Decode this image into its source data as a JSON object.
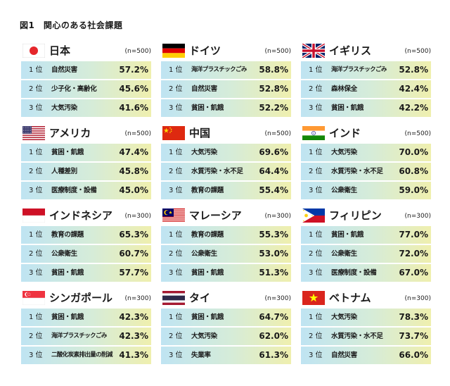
{
  "figure_title": "図1　関心のある社会課題",
  "chart_data": {
    "type": "table",
    "title": "図1　関心のある社会課題",
    "rank_labels": [
      "1 位",
      "2 位",
      "3 位"
    ],
    "countries": [
      {
        "name": "日本",
        "flag": "japan-flag-icon",
        "n": "(n=500)",
        "issues": [
          {
            "label": "自然災害",
            "value": "57.2%"
          },
          {
            "label": "少子化・高齢化",
            "value": "45.6%"
          },
          {
            "label": "大気汚染",
            "value": "41.6%"
          }
        ]
      },
      {
        "name": "ドイツ",
        "flag": "germany-flag-icon",
        "n": "(n=500)",
        "issues": [
          {
            "label": "海洋プラスチックごみ",
            "value": "58.8%"
          },
          {
            "label": "自然災害",
            "value": "52.8%"
          },
          {
            "label": "貧困・飢餓",
            "value": "52.2%"
          }
        ]
      },
      {
        "name": "イギリス",
        "flag": "uk-flag-icon",
        "n": "(n=500)",
        "issues": [
          {
            "label": "海洋プラスチックごみ",
            "value": "52.8%"
          },
          {
            "label": "森林保全",
            "value": "42.4%"
          },
          {
            "label": "貧困・飢餓",
            "value": "42.2%"
          }
        ]
      },
      {
        "name": "アメリカ",
        "flag": "usa-flag-icon",
        "n": "(n=500)",
        "issues": [
          {
            "label": "貧困・飢餓",
            "value": "47.4%"
          },
          {
            "label": "人種差別",
            "value": "45.8%"
          },
          {
            "label": "医療制度・設備",
            "value": "45.0%"
          }
        ]
      },
      {
        "name": "中国",
        "flag": "china-flag-icon",
        "n": "(n=500)",
        "issues": [
          {
            "label": "大気汚染",
            "value": "69.6%"
          },
          {
            "label": "水質汚染・水不足",
            "value": "64.4%"
          },
          {
            "label": "教育の課題",
            "value": "55.4%"
          }
        ]
      },
      {
        "name": "インド",
        "flag": "india-flag-icon",
        "n": "(n=500)",
        "issues": [
          {
            "label": "大気汚染",
            "value": "70.0%"
          },
          {
            "label": "水質汚染・水不足",
            "value": "60.8%"
          },
          {
            "label": "公衆衛生",
            "value": "59.0%"
          }
        ]
      },
      {
        "name": "インドネシア",
        "flag": "indonesia-flag-icon",
        "n": "(n=300)",
        "issues": [
          {
            "label": "教育の課題",
            "value": "65.3%"
          },
          {
            "label": "公衆衛生",
            "value": "60.7%"
          },
          {
            "label": "貧困・飢餓",
            "value": "57.7%"
          }
        ]
      },
      {
        "name": "マレーシア",
        "flag": "malaysia-flag-icon",
        "n": "(n=300)",
        "issues": [
          {
            "label": "教育の課題",
            "value": "55.3%"
          },
          {
            "label": "公衆衛生",
            "value": "53.0%"
          },
          {
            "label": "貧困・飢餓",
            "value": "51.3%"
          }
        ]
      },
      {
        "name": "フィリピン",
        "flag": "philippines-flag-icon",
        "n": "(n=300)",
        "issues": [
          {
            "label": "貧困・飢餓",
            "value": "77.0%"
          },
          {
            "label": "公衆衛生",
            "value": "72.0%"
          },
          {
            "label": "医療制度・設備",
            "value": "67.0%"
          }
        ]
      },
      {
        "name": "シンガポール",
        "flag": "singapore-flag-icon",
        "n": "(n=300)",
        "issues": [
          {
            "label": "貧困・飢餓",
            "value": "42.3%"
          },
          {
            "label": "海洋プラスチックごみ",
            "value": "42.3%"
          },
          {
            "label": "二酸化炭素排出量の削減",
            "value": "41.3%"
          }
        ]
      },
      {
        "name": "タイ",
        "flag": "thailand-flag-icon",
        "n": "(n=300)",
        "issues": [
          {
            "label": "貧困・飢餓",
            "value": "64.7%"
          },
          {
            "label": "大気汚染",
            "value": "62.0%"
          },
          {
            "label": "失業率",
            "value": "61.3%"
          }
        ]
      },
      {
        "name": "ベトナム",
        "flag": "vietnam-flag-icon",
        "n": "(n=300)",
        "issues": [
          {
            "label": "大気汚染",
            "value": "78.3%"
          },
          {
            "label": "水質汚染・水不足",
            "value": "73.7%"
          },
          {
            "label": "自然災害",
            "value": "66.0%"
          }
        ]
      }
    ]
  },
  "colors": {
    "row_gradient": [
      "#bfe4f2",
      "#d6ecd8",
      "#efefae"
    ],
    "flag_red": "#e5262b",
    "flag_blue": "#012169"
  }
}
